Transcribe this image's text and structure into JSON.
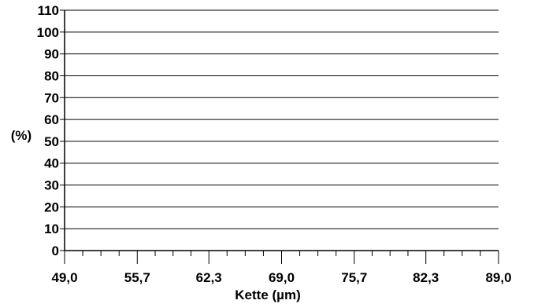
{
  "chart_data": {
    "type": "line",
    "title": "",
    "xlabel": "Kette (µm)",
    "ylabel": "(%)",
    "x_ticks": [
      "49,0",
      "55,7",
      "62,3",
      "69,0",
      "75,7",
      "82,3",
      "89,0"
    ],
    "x_tick_values": [
      49.0,
      55.7,
      62.3,
      69.0,
      75.7,
      82.3,
      89.0
    ],
    "x_minor_ticks_per_interval": 3,
    "xlim": [
      49.0,
      89.0
    ],
    "y_ticks": [
      "0",
      "10",
      "20",
      "30",
      "40",
      "50",
      "60",
      "70",
      "80",
      "90",
      "100",
      "110"
    ],
    "ylim": [
      0,
      110
    ],
    "grid": "horizontal",
    "series": []
  }
}
